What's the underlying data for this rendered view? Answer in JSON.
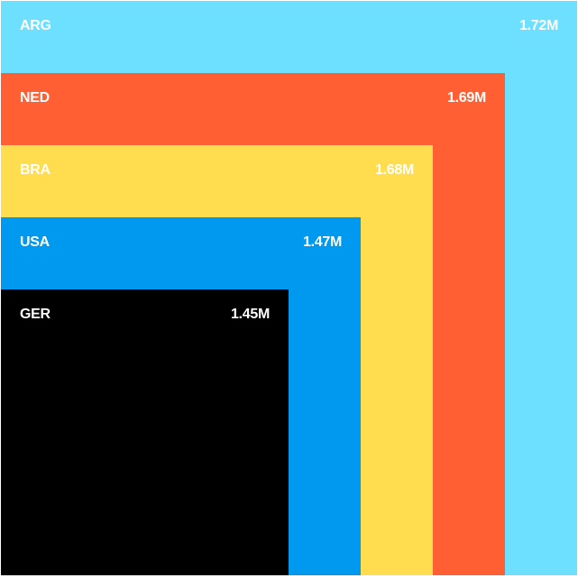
{
  "chart_data": {
    "type": "bar",
    "series": [
      {
        "category": "ARG",
        "value_label": "1.72M",
        "color": "#6ee0ff"
      },
      {
        "category": "NED",
        "value_label": "1.69M",
        "color": "#ff5f33"
      },
      {
        "category": "BRA",
        "value_label": "1.68M",
        "color": "#ffdd4f"
      },
      {
        "category": "USA",
        "value_label": "1.47M",
        "color": "#0099f0"
      },
      {
        "category": "GER",
        "value_label": "1.45M",
        "color": "#000000"
      }
    ]
  }
}
